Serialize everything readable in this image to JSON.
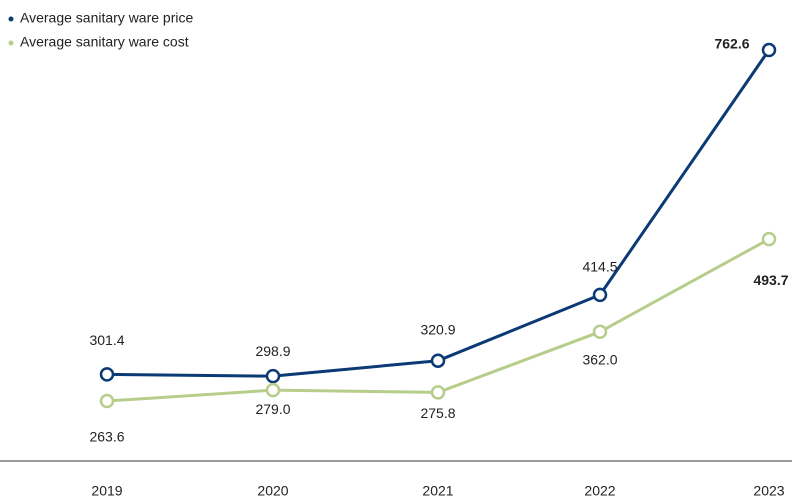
{
  "chart_data": {
    "type": "line",
    "categories": [
      "2019",
      "2020",
      "2021",
      "2022",
      "2023"
    ],
    "series": [
      {
        "name": "Average sanitary ware price",
        "color": "#0b3a75",
        "values": [
          301.4,
          298.9,
          320.9,
          414.5,
          762.6
        ],
        "value_labels": [
          "301.4",
          "298.9",
          "320.9",
          "414.5",
          "762.6"
        ]
      },
      {
        "name": "Average sanitary ware cost",
        "color": "#b7cd8b",
        "values": [
          263.6,
          279.0,
          275.8,
          362.0,
          493.7
        ],
        "value_labels": [
          "263.6",
          "279.0",
          "275.8",
          "362.0",
          "493.7"
        ]
      }
    ],
    "legend": "top-left",
    "grid": false
  }
}
